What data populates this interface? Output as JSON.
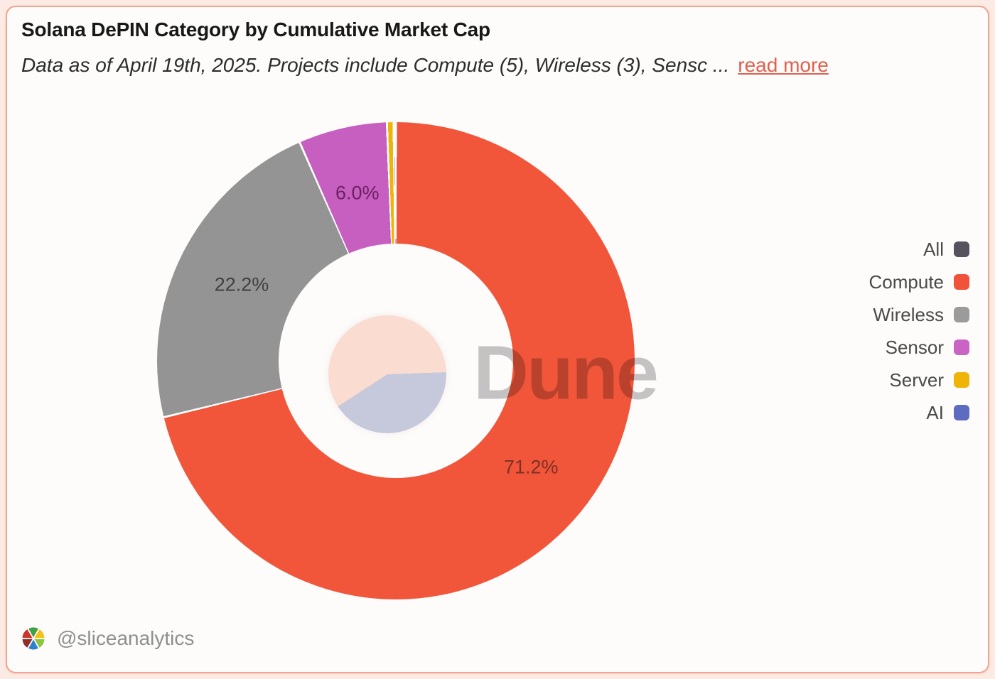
{
  "header": {
    "title": "Solana DePIN Category by Cumulative Market Cap",
    "subtitle_truncated": "Data as of April 19th, 2025. Projects include Compute (5), Wireless (3), Sensc ...",
    "read_more_label": "read more"
  },
  "chart_data": {
    "type": "pie",
    "variant": "donut",
    "title": "Solana DePIN Category by Cumulative Market Cap",
    "unit": "%",
    "start_angle_deg": 0,
    "direction": "clockwise",
    "slices": [
      {
        "name": "Compute",
        "value": 71.2,
        "label": "71.2%",
        "color": "#f1553a",
        "label_color": "#7c3126",
        "show_label": true
      },
      {
        "name": "Wireless",
        "value": 22.2,
        "label": "22.2%",
        "color": "#949494",
        "label_color": "#3f3f3f",
        "show_label": true
      },
      {
        "name": "Sensor",
        "value": 6.0,
        "label": "6.0%",
        "color": "#c75fc0",
        "label_color": "#6e2063",
        "show_label": true
      },
      {
        "name": "Server",
        "value": 0.45,
        "color": "#eeb408",
        "show_label": false
      },
      {
        "name": "AI",
        "value": 0.15,
        "color": "#5d6cc0",
        "show_label": false
      }
    ],
    "inner_pie": {
      "type": "pie",
      "values": [
        58.6,
        41.4
      ],
      "colors": [
        "#fadcd1",
        "#c6c9db"
      ],
      "start_angle_deg": 237
    },
    "watermark": "Dune",
    "legend_position": "right"
  },
  "legend": {
    "items": [
      {
        "label": "All",
        "color": "#57535e"
      },
      {
        "label": "Compute",
        "color": "#f0533a"
      },
      {
        "label": "Wireless",
        "color": "#9b9b9b"
      },
      {
        "label": "Sensor",
        "color": "#c964c4"
      },
      {
        "label": "Server",
        "color": "#eeb408"
      },
      {
        "label": "AI",
        "color": "#5d6cc0"
      }
    ]
  },
  "footer": {
    "handle": "@sliceanalytics",
    "logo_icon": "slice-pinwheel-icon"
  },
  "colors": {
    "page_bg": "#fcebe4",
    "card_bg": "#fefcfb",
    "card_border": "#f1a492",
    "link": "#e0604e",
    "watermark": "#c5c5c5",
    "separator": "#ffffff"
  }
}
